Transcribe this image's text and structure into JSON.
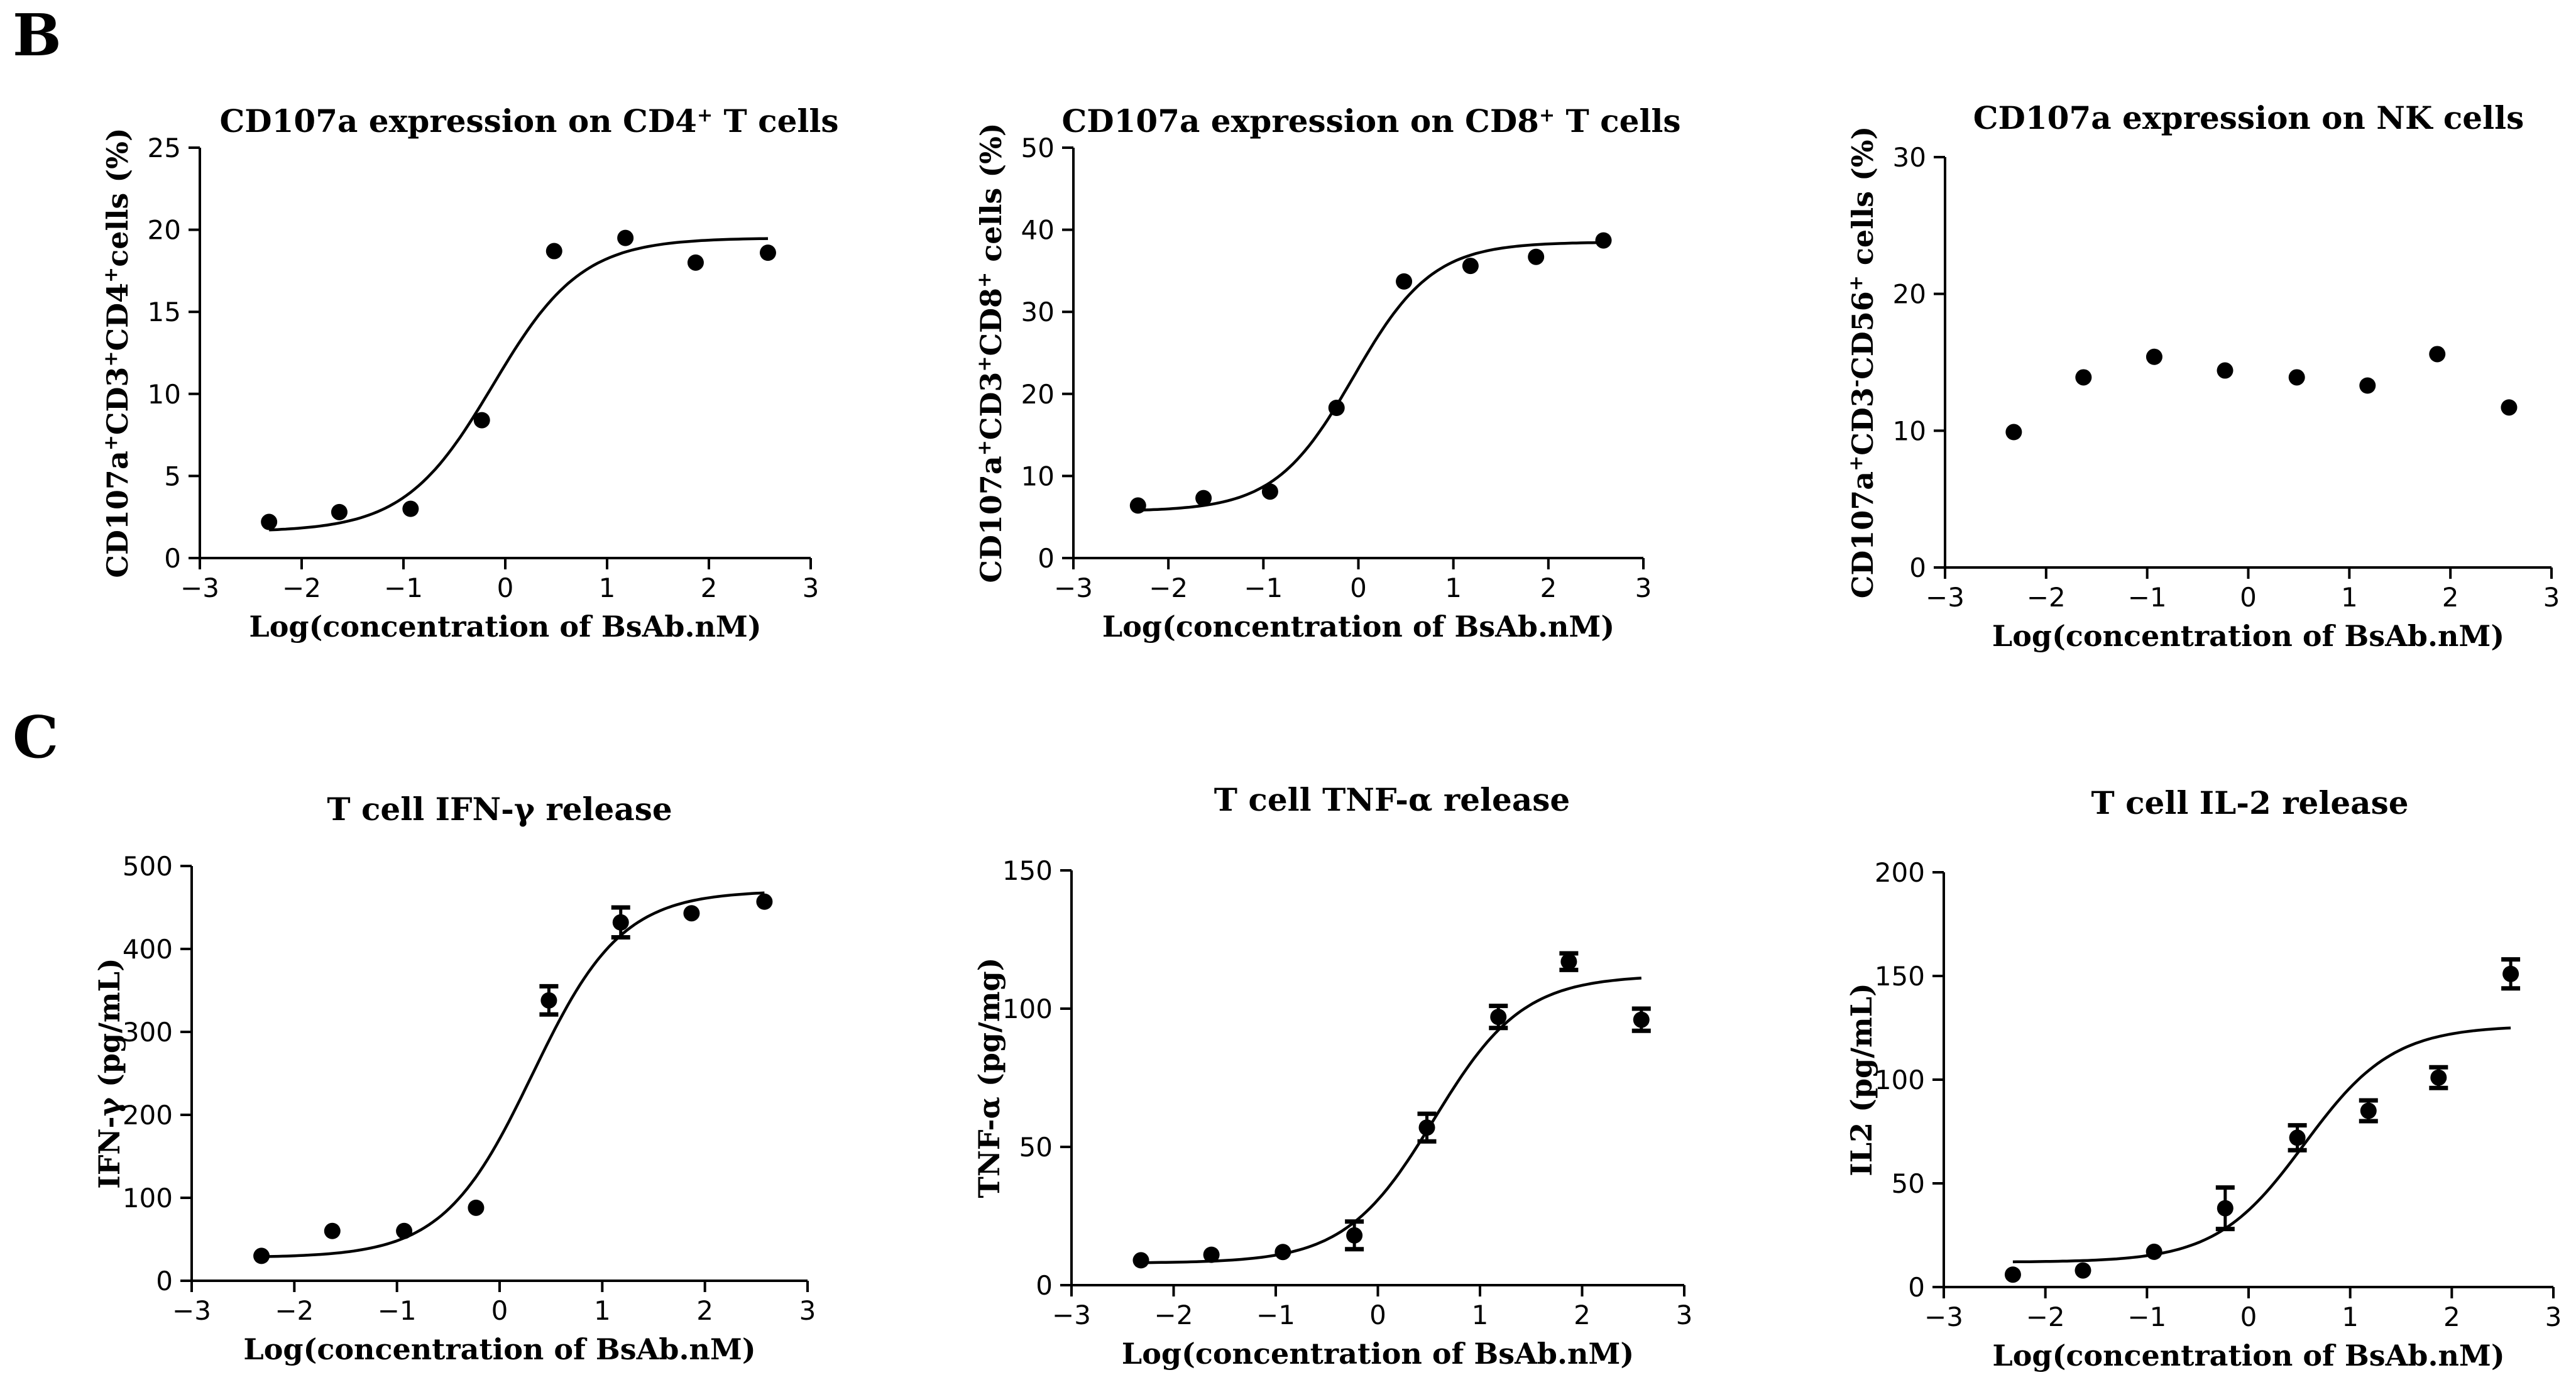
{
  "figure": {
    "panel_letters": [
      "B",
      "C"
    ]
  },
  "chart_data": [
    {
      "type": "scatter",
      "title": {
        "parts": [
          {
            "t": "CD107a expression on CD4"
          },
          {
            "t": "+",
            "sup": true
          },
          {
            "t": " T cells"
          }
        ]
      },
      "xlabel": "Log(concentration of BsAb.nM)",
      "ylabel": {
        "parts": [
          {
            "t": "CD107a"
          },
          {
            "t": "+",
            "sup": true
          },
          {
            "t": "CD3"
          },
          {
            "t": "+",
            "sup": true
          },
          {
            "t": "CD4"
          },
          {
            "t": "+",
            "sup": true
          },
          {
            "t": "cells (%)"
          }
        ]
      },
      "xlim": [
        -3,
        3
      ],
      "xticks": [
        -3,
        -2,
        -1,
        0,
        1,
        2,
        3
      ],
      "ylim": [
        0,
        25
      ],
      "yticks": [
        0,
        5,
        10,
        15,
        20,
        25
      ],
      "x": [
        -2.32,
        -1.63,
        -0.93,
        -0.23,
        0.48,
        1.18,
        1.87,
        2.58
      ],
      "y": [
        2.2,
        2.8,
        3.0,
        8.4,
        18.7,
        19.5,
        18.0,
        18.6
      ],
      "fit": {
        "bottom": 1.6,
        "top": 19.5,
        "logEC50": -0.12,
        "hill": 1.0
      }
    },
    {
      "type": "scatter",
      "title": {
        "parts": [
          {
            "t": "CD107a expression on CD8"
          },
          {
            "t": "+",
            "sup": true
          },
          {
            "t": " T  cells"
          }
        ]
      },
      "xlabel": "Log(concentration of BsAb.nM)",
      "ylabel": {
        "parts": [
          {
            "t": "CD107a"
          },
          {
            "t": "+",
            "sup": true
          },
          {
            "t": "CD3"
          },
          {
            "t": "+",
            "sup": true
          },
          {
            "t": "CD8"
          },
          {
            "t": "+",
            "sup": true
          },
          {
            "t": " cells (%)"
          }
        ]
      },
      "xlim": [
        -3,
        3
      ],
      "xticks": [
        -3,
        -2,
        -1,
        0,
        1,
        2,
        3
      ],
      "ylim": [
        0,
        50
      ],
      "yticks": [
        0,
        10,
        20,
        30,
        40,
        50
      ],
      "x": [
        -2.32,
        -1.63,
        -0.93,
        -0.23,
        0.48,
        1.18,
        1.87,
        2.58
      ],
      "y": [
        6.4,
        7.3,
        8.1,
        18.3,
        33.7,
        35.6,
        36.7,
        38.7
      ],
      "fit": {
        "bottom": 5.7,
        "top": 38.5,
        "logEC50": -0.05,
        "hill": 1.05
      }
    },
    {
      "type": "scatter",
      "title": {
        "parts": [
          {
            "t": "CD107a expression on NK cells"
          }
        ]
      },
      "xlabel": "Log(concentration of BsAb.nM)",
      "ylabel": {
        "parts": [
          {
            "t": "CD107a"
          },
          {
            "t": "+",
            "sup": true
          },
          {
            "t": "CD3"
          },
          {
            "t": "-",
            "sup": true
          },
          {
            "t": "CD56"
          },
          {
            "t": "+",
            "sup": true
          },
          {
            "t": " cells (%)"
          }
        ]
      },
      "xlim": [
        -3,
        3
      ],
      "xticks": [
        -3,
        -2,
        -1,
        0,
        1,
        2,
        3
      ],
      "ylim": [
        0,
        30
      ],
      "yticks": [
        0,
        10,
        20,
        30
      ],
      "x": [
        -2.32,
        -1.63,
        -0.93,
        -0.23,
        0.48,
        1.18,
        1.87,
        2.58
      ],
      "y": [
        9.9,
        13.9,
        15.4,
        14.4,
        13.9,
        13.3,
        15.6,
        11.7
      ]
    },
    {
      "type": "scatter",
      "title": {
        "parts": [
          {
            "t": "T cell IFN-γ release"
          }
        ]
      },
      "xlabel": "Log(concentration of BsAb.nM)",
      "ylabel": {
        "parts": [
          {
            "t": "IFN-γ (pg/mL)"
          }
        ]
      },
      "xlim": [
        -3,
        3
      ],
      "xticks": [
        -3,
        -2,
        -1,
        0,
        1,
        2,
        3
      ],
      "ylim": [
        0,
        500
      ],
      "yticks": [
        0,
        100,
        200,
        300,
        400,
        500
      ],
      "x": [
        -2.32,
        -1.63,
        -0.93,
        -0.23,
        0.48,
        1.18,
        1.87,
        2.58
      ],
      "y": [
        30,
        60,
        60,
        88,
        338,
        432,
        443,
        457
      ],
      "err": [
        0,
        0,
        0,
        0,
        17,
        18,
        0,
        0
      ],
      "fit": {
        "bottom": 28,
        "top": 470,
        "logEC50": 0.32,
        "hill": 1.0
      }
    },
    {
      "type": "scatter",
      "title": {
        "parts": [
          {
            "t": "T cell TNF-α  release"
          }
        ]
      },
      "xlabel": "Log(concentration of BsAb.nM)",
      "ylabel": {
        "parts": [
          {
            "t": "TNF-α (pg/mg)"
          }
        ]
      },
      "xlim": [
        -3,
        3
      ],
      "xticks": [
        -3,
        -2,
        -1,
        0,
        1,
        2,
        3
      ],
      "ylim": [
        0,
        150
      ],
      "yticks": [
        0,
        50,
        100,
        150
      ],
      "x": [
        -2.32,
        -1.63,
        -0.93,
        -0.23,
        0.48,
        1.18,
        1.87,
        2.58
      ],
      "y": [
        9,
        11,
        12,
        18,
        57,
        97,
        117,
        96
      ],
      "err": [
        0,
        0,
        0,
        5,
        5,
        4,
        3,
        4
      ],
      "fit": {
        "bottom": 8,
        "top": 112,
        "logEC50": 0.55,
        "hill": 1.0
      }
    },
    {
      "type": "scatter",
      "title": {
        "parts": [
          {
            "t": "T cell IL-2 release"
          }
        ]
      },
      "xlabel": "Log(concentration of BsAb.nM)",
      "ylabel": {
        "parts": [
          {
            "t": "IL2 (pg/mL)"
          }
        ]
      },
      "xlim": [
        -3,
        3
      ],
      "xticks": [
        -3,
        -2,
        -1,
        0,
        1,
        2,
        3
      ],
      "ylim": [
        0,
        200
      ],
      "yticks": [
        0,
        50,
        100,
        150,
        200
      ],
      "x": [
        -2.32,
        -1.63,
        -0.93,
        -0.23,
        0.48,
        1.18,
        1.87,
        2.58
      ],
      "y": [
        6,
        8,
        17,
        38,
        72,
        85,
        101,
        151
      ],
      "err": [
        0,
        0,
        0,
        10,
        6,
        5,
        5,
        7
      ],
      "fit": {
        "bottom": 12,
        "top": 126,
        "logEC50": 0.55,
        "hill": 1.0
      }
    }
  ]
}
